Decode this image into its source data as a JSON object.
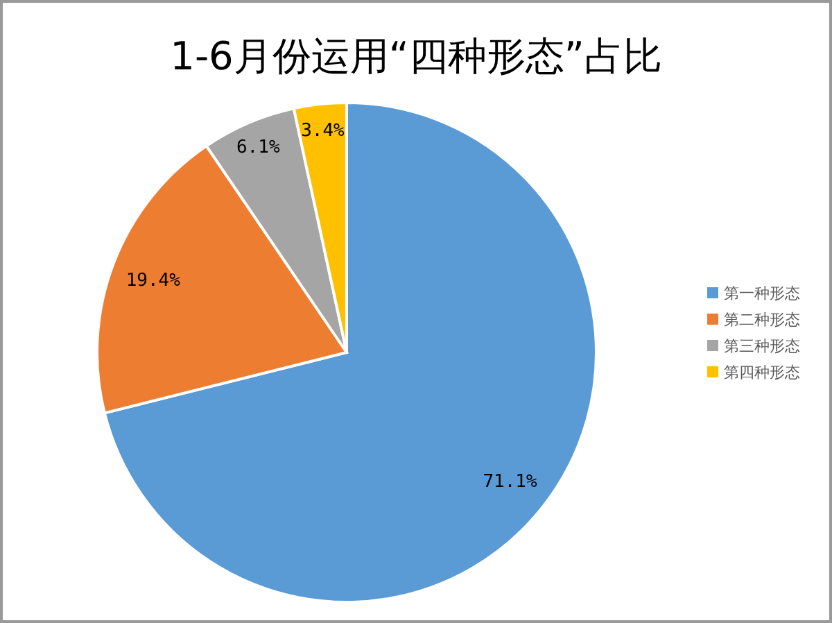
{
  "chart_data": {
    "type": "pie",
    "title": "1-6月份运用“四种形态”占比",
    "categories": [
      "第一种形态",
      "第二种形态",
      "第三种形态",
      "第四种形态"
    ],
    "values": [
      71.1,
      19.4,
      6.1,
      3.4
    ],
    "colors": [
      "#5b9bd5",
      "#ed7d31",
      "#a5a5a5",
      "#ffc000"
    ],
    "value_labels": [
      "71.1%",
      "19.4%",
      "6.1%",
      "3.4%"
    ],
    "legend": "right"
  }
}
